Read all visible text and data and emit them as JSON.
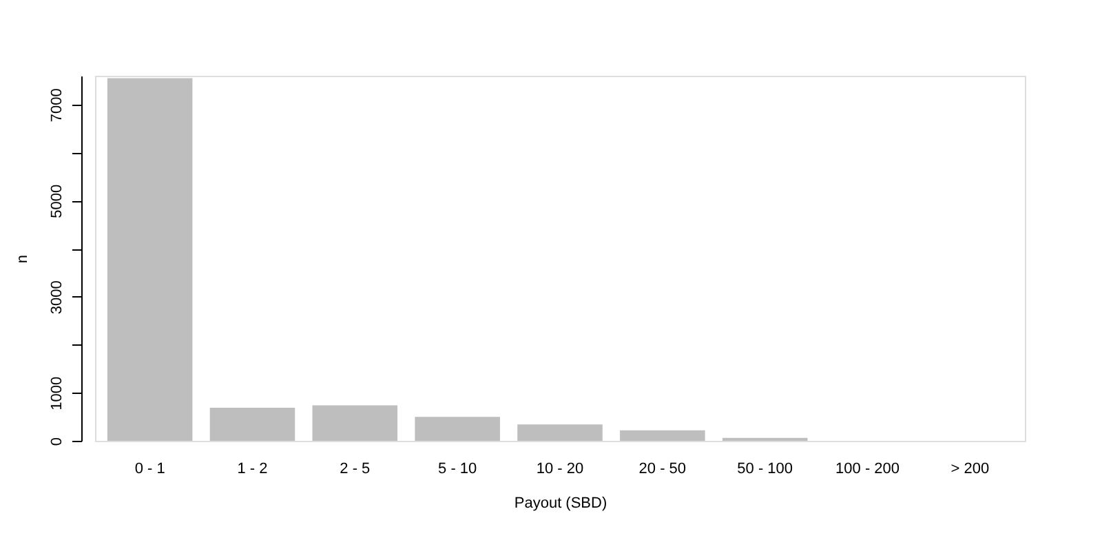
{
  "chart_data": {
    "type": "bar",
    "xlabel": "Payout (SBD)",
    "ylabel": "n",
    "categories": [
      "0 - 1",
      "1 - 2",
      "2 - 5",
      "5 - 10",
      "10 - 20",
      "20 - 50",
      "50 - 100",
      "100 - 200",
      "> 200"
    ],
    "values": [
      7550,
      690,
      740,
      500,
      340,
      220,
      60,
      0,
      0
    ],
    "color": "#bebebe",
    "ylim": [
      0,
      7600
    ],
    "yticks": [
      0,
      1000,
      {
        "value": 2000,
        "label": null
      },
      3000,
      {
        "value": 4000,
        "label": null
      },
      5000,
      {
        "value": 6000,
        "label": null
      },
      7000
    ],
    "grid": false
  }
}
